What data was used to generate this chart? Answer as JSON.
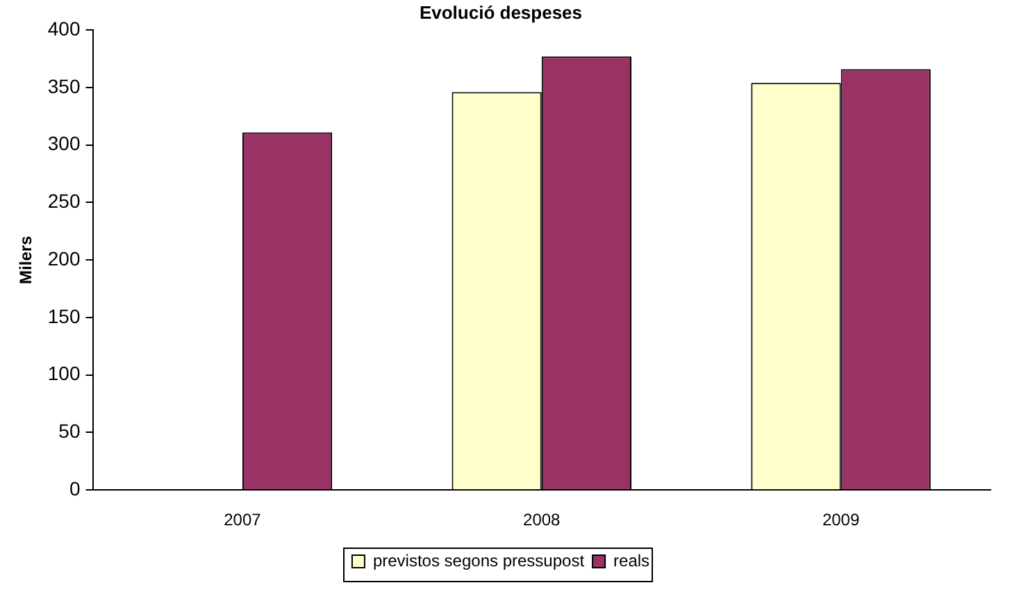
{
  "chart_data": {
    "type": "bar",
    "title": "Evolució despeses",
    "ylabel": "Milers",
    "categories": [
      "2007",
      "2008",
      "2009"
    ],
    "series": [
      {
        "name": "previstos segons pressupost",
        "color": "#ffffcc",
        "values": [
          null,
          346,
          354
        ]
      },
      {
        "name": "reals",
        "color": "#993366",
        "values": [
          311,
          377,
          366
        ]
      }
    ],
    "ylim": [
      0,
      400
    ],
    "yticks": [
      0,
      50,
      100,
      150,
      200,
      250,
      300,
      350,
      400
    ],
    "grid": false,
    "legend": "bottom"
  }
}
